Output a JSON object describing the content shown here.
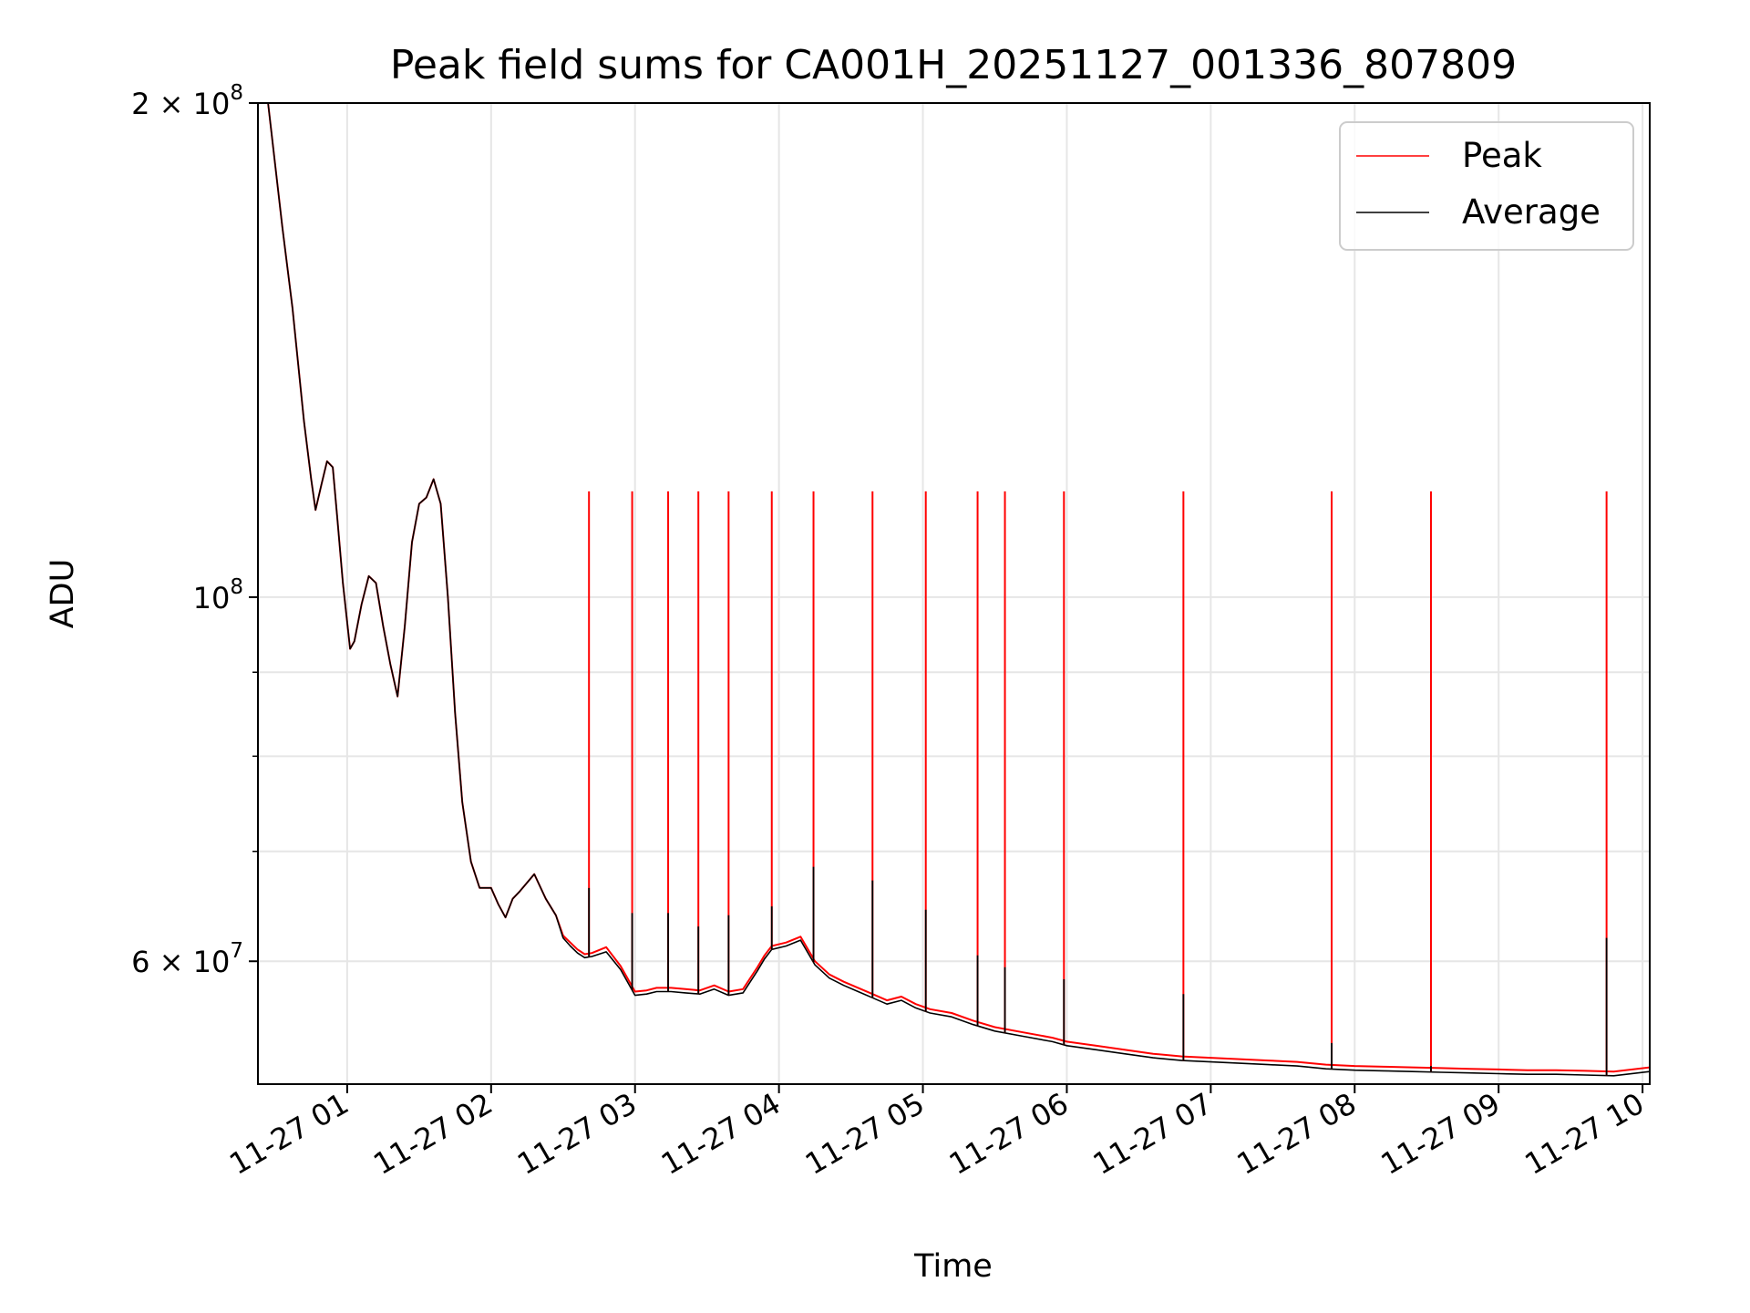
{
  "chart_data": {
    "type": "line",
    "title": "Peak field sums for CA001H_20251127_001336_807809",
    "xlabel": "Time",
    "ylabel": "ADU",
    "yscale": "log",
    "xlim": [
      0.38,
      10.05
    ],
    "ylim": [
      50500000,
      200000000
    ],
    "grid": true,
    "legend_position": "top-right",
    "x_ticks": [
      {
        "value": 1,
        "label": "11-27 01"
      },
      {
        "value": 2,
        "label": "11-27 02"
      },
      {
        "value": 3,
        "label": "11-27 03"
      },
      {
        "value": 4,
        "label": "11-27 04"
      },
      {
        "value": 5,
        "label": "11-27 05"
      },
      {
        "value": 6,
        "label": "11-27 06"
      },
      {
        "value": 7,
        "label": "11-27 07"
      },
      {
        "value": 8,
        "label": "11-27 08"
      },
      {
        "value": 9,
        "label": "11-27 09"
      },
      {
        "value": 10,
        "label": "11-27 10"
      }
    ],
    "y_major_ticks": [
      {
        "value": 60000000,
        "mantissa": "6",
        "exponent": "7"
      },
      {
        "value": 100000000,
        "mantissa": "",
        "exponent": "8"
      },
      {
        "value": 200000000,
        "mantissa": "2",
        "exponent": "8"
      }
    ],
    "y_minor_gridlines": [
      70000000,
      80000000,
      90000000
    ],
    "tick_base": "10",
    "times_sign": "×",
    "spike_value": 116000000,
    "spike_times": [
      2.68,
      2.98,
      3.23,
      3.44,
      3.65,
      3.95,
      4.24,
      4.65,
      5.02,
      5.38,
      5.57,
      5.98,
      6.81,
      7.84,
      8.53,
      9.75
    ],
    "average_spike_heights": [
      66500000,
      64200000,
      64200000,
      63000000,
      64000000,
      64800000,
      68500000,
      67200000,
      64500000,
      60500000,
      59500000,
      58500000,
      57300000,
      53500000,
      51800000,
      62000000
    ],
    "series": [
      {
        "name": "Peak",
        "color": "#ff0000",
        "x": [
          0.38,
          0.45,
          0.55,
          0.62,
          0.7,
          0.75,
          0.78,
          0.82,
          0.86,
          0.9,
          0.93,
          0.97,
          1.02,
          1.05,
          1.1,
          1.15,
          1.2,
          1.25,
          1.3,
          1.35,
          1.4,
          1.45,
          1.5,
          1.55,
          1.6,
          1.65,
          1.7,
          1.75,
          1.8,
          1.86,
          1.92,
          2.0,
          2.05,
          2.1,
          2.15,
          2.2,
          2.3,
          2.38,
          2.45,
          2.5,
          2.55,
          2.6,
          2.65,
          2.7,
          2.8,
          2.9,
          3.0,
          3.08,
          3.15,
          3.25,
          3.35,
          3.45,
          3.55,
          3.65,
          3.75,
          3.85,
          3.9,
          3.95,
          4.05,
          4.15,
          4.25,
          4.35,
          4.45,
          4.55,
          4.65,
          4.75,
          4.85,
          4.95,
          5.05,
          5.2,
          5.35,
          5.5,
          5.7,
          5.9,
          6.0,
          6.2,
          6.4,
          6.6,
          6.8,
          7.0,
          7.2,
          7.4,
          7.6,
          7.8,
          8.0,
          8.2,
          8.4,
          8.6,
          8.8,
          9.0,
          9.2,
          9.4,
          9.6,
          9.8,
          10.05
        ],
        "y": [
          200000000,
          200000000,
          168000000,
          150000000,
          128000000,
          118000000,
          113000000,
          117000000,
          121000000,
          120000000,
          112000000,
          102000000,
          93000000,
          94000000,
          99000000,
          103000000,
          102000000,
          96000000,
          91000000,
          87000000,
          96000000,
          108000000,
          114000000,
          115000000,
          118000000,
          114000000,
          100000000,
          85000000,
          75000000,
          69000000,
          66500000,
          66500000,
          65000000,
          63800000,
          65500000,
          66200000,
          67800000,
          65500000,
          64000000,
          62200000,
          61600000,
          61000000,
          60600000,
          60700000,
          61200000,
          59600000,
          57500000,
          57600000,
          57800000,
          57800000,
          57700000,
          57600000,
          58000000,
          57500000,
          57700000,
          59500000,
          60500000,
          61300000,
          61600000,
          62100000,
          60000000,
          58900000,
          58300000,
          57800000,
          57300000,
          56800000,
          57100000,
          56500000,
          56100000,
          55800000,
          55200000,
          54700000,
          54300000,
          53900000,
          53600000,
          53300000,
          53000000,
          52700000,
          52500000,
          52400000,
          52300000,
          52200000,
          52100000,
          51900000,
          51800000,
          51750000,
          51700000,
          51650000,
          51600000,
          51550000,
          51500000,
          51500000,
          51450000,
          51400000,
          51700000
        ]
      },
      {
        "name": "Average",
        "color": "#000000",
        "x": [
          0.38,
          0.45,
          0.55,
          0.62,
          0.7,
          0.75,
          0.78,
          0.82,
          0.86,
          0.9,
          0.93,
          0.97,
          1.02,
          1.05,
          1.1,
          1.15,
          1.2,
          1.25,
          1.3,
          1.35,
          1.4,
          1.45,
          1.5,
          1.55,
          1.6,
          1.65,
          1.7,
          1.75,
          1.8,
          1.86,
          1.92,
          2.0,
          2.05,
          2.1,
          2.15,
          2.2,
          2.3,
          2.38,
          2.45,
          2.5,
          2.55,
          2.6,
          2.65,
          2.7,
          2.8,
          2.9,
          3.0,
          3.08,
          3.15,
          3.25,
          3.35,
          3.45,
          3.55,
          3.65,
          3.75,
          3.85,
          3.9,
          3.95,
          4.05,
          4.15,
          4.25,
          4.35,
          4.45,
          4.55,
          4.65,
          4.75,
          4.85,
          4.95,
          5.05,
          5.2,
          5.35,
          5.5,
          5.7,
          5.9,
          6.0,
          6.2,
          6.4,
          6.6,
          6.8,
          7.0,
          7.2,
          7.4,
          7.6,
          7.8,
          8.0,
          8.2,
          8.4,
          8.6,
          8.8,
          9.0,
          9.2,
          9.4,
          9.6,
          9.8,
          10.05
        ],
        "y": [
          200000000,
          200000000,
          168000000,
          150000000,
          128000000,
          118000000,
          113000000,
          117000000,
          121000000,
          120000000,
          112000000,
          102000000,
          93000000,
          94000000,
          99000000,
          103000000,
          102000000,
          96000000,
          91000000,
          87000000,
          96000000,
          108000000,
          114000000,
          115000000,
          118000000,
          114000000,
          100000000,
          85000000,
          75000000,
          69000000,
          66500000,
          66500000,
          65000000,
          63800000,
          65500000,
          66200000,
          67800000,
          65500000,
          64000000,
          62000000,
          61300000,
          60700000,
          60300000,
          60400000,
          60800000,
          59300000,
          57200000,
          57300000,
          57500000,
          57500000,
          57400000,
          57300000,
          57700000,
          57200000,
          57400000,
          59200000,
          60200000,
          61000000,
          61300000,
          61800000,
          59700000,
          58600000,
          58000000,
          57500000,
          57000000,
          56500000,
          56800000,
          56200000,
          55800000,
          55500000,
          54900000,
          54400000,
          54000000,
          53600000,
          53300000,
          53000000,
          52700000,
          52400000,
          52200000,
          52100000,
          52000000,
          51900000,
          51800000,
          51600000,
          51500000,
          51450000,
          51400000,
          51350000,
          51300000,
          51250000,
          51200000,
          51200000,
          51150000,
          51100000,
          51400000
        ]
      }
    ]
  }
}
